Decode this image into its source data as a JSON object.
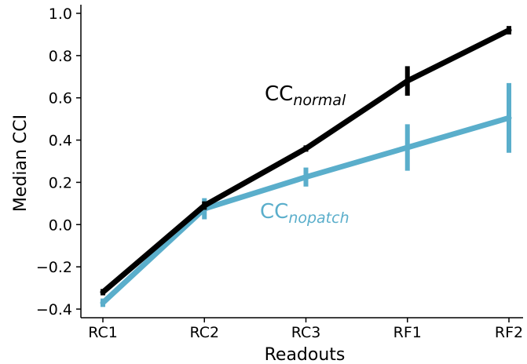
{
  "chart_data": {
    "type": "line",
    "title": "",
    "xlabel": "Readouts",
    "ylabel": "Median CCI",
    "categories": [
      "RC1",
      "RC2",
      "RC3",
      "RF1",
      "RF2"
    ],
    "ylim": [
      -0.45,
      1.0
    ],
    "yticks": [
      -0.4,
      -0.2,
      0.0,
      0.2,
      0.4,
      0.6,
      0.8,
      1.0
    ],
    "yticklabels": [
      "−0.4",
      "−0.2",
      "0.0",
      "0.2",
      "0.4",
      "0.6",
      "0.8",
      "1.0"
    ],
    "grid": false,
    "legend": "none",
    "series": [
      {
        "label_main": "CC",
        "label_sub": "normal",
        "color": "#000000",
        "values": [
          -0.32,
          0.09,
          0.36,
          0.68,
          0.92
        ],
        "errors": [
          0.015,
          0.02,
          0.015,
          0.07,
          0.02
        ]
      },
      {
        "label_main": "CC",
        "label_sub": "nopatch",
        "color": "#5aaecb",
        "values": [
          -0.37,
          0.075,
          0.225,
          0.365,
          0.505
        ],
        "errors": [
          0.02,
          0.05,
          0.045,
          0.11,
          0.165
        ]
      }
    ]
  }
}
